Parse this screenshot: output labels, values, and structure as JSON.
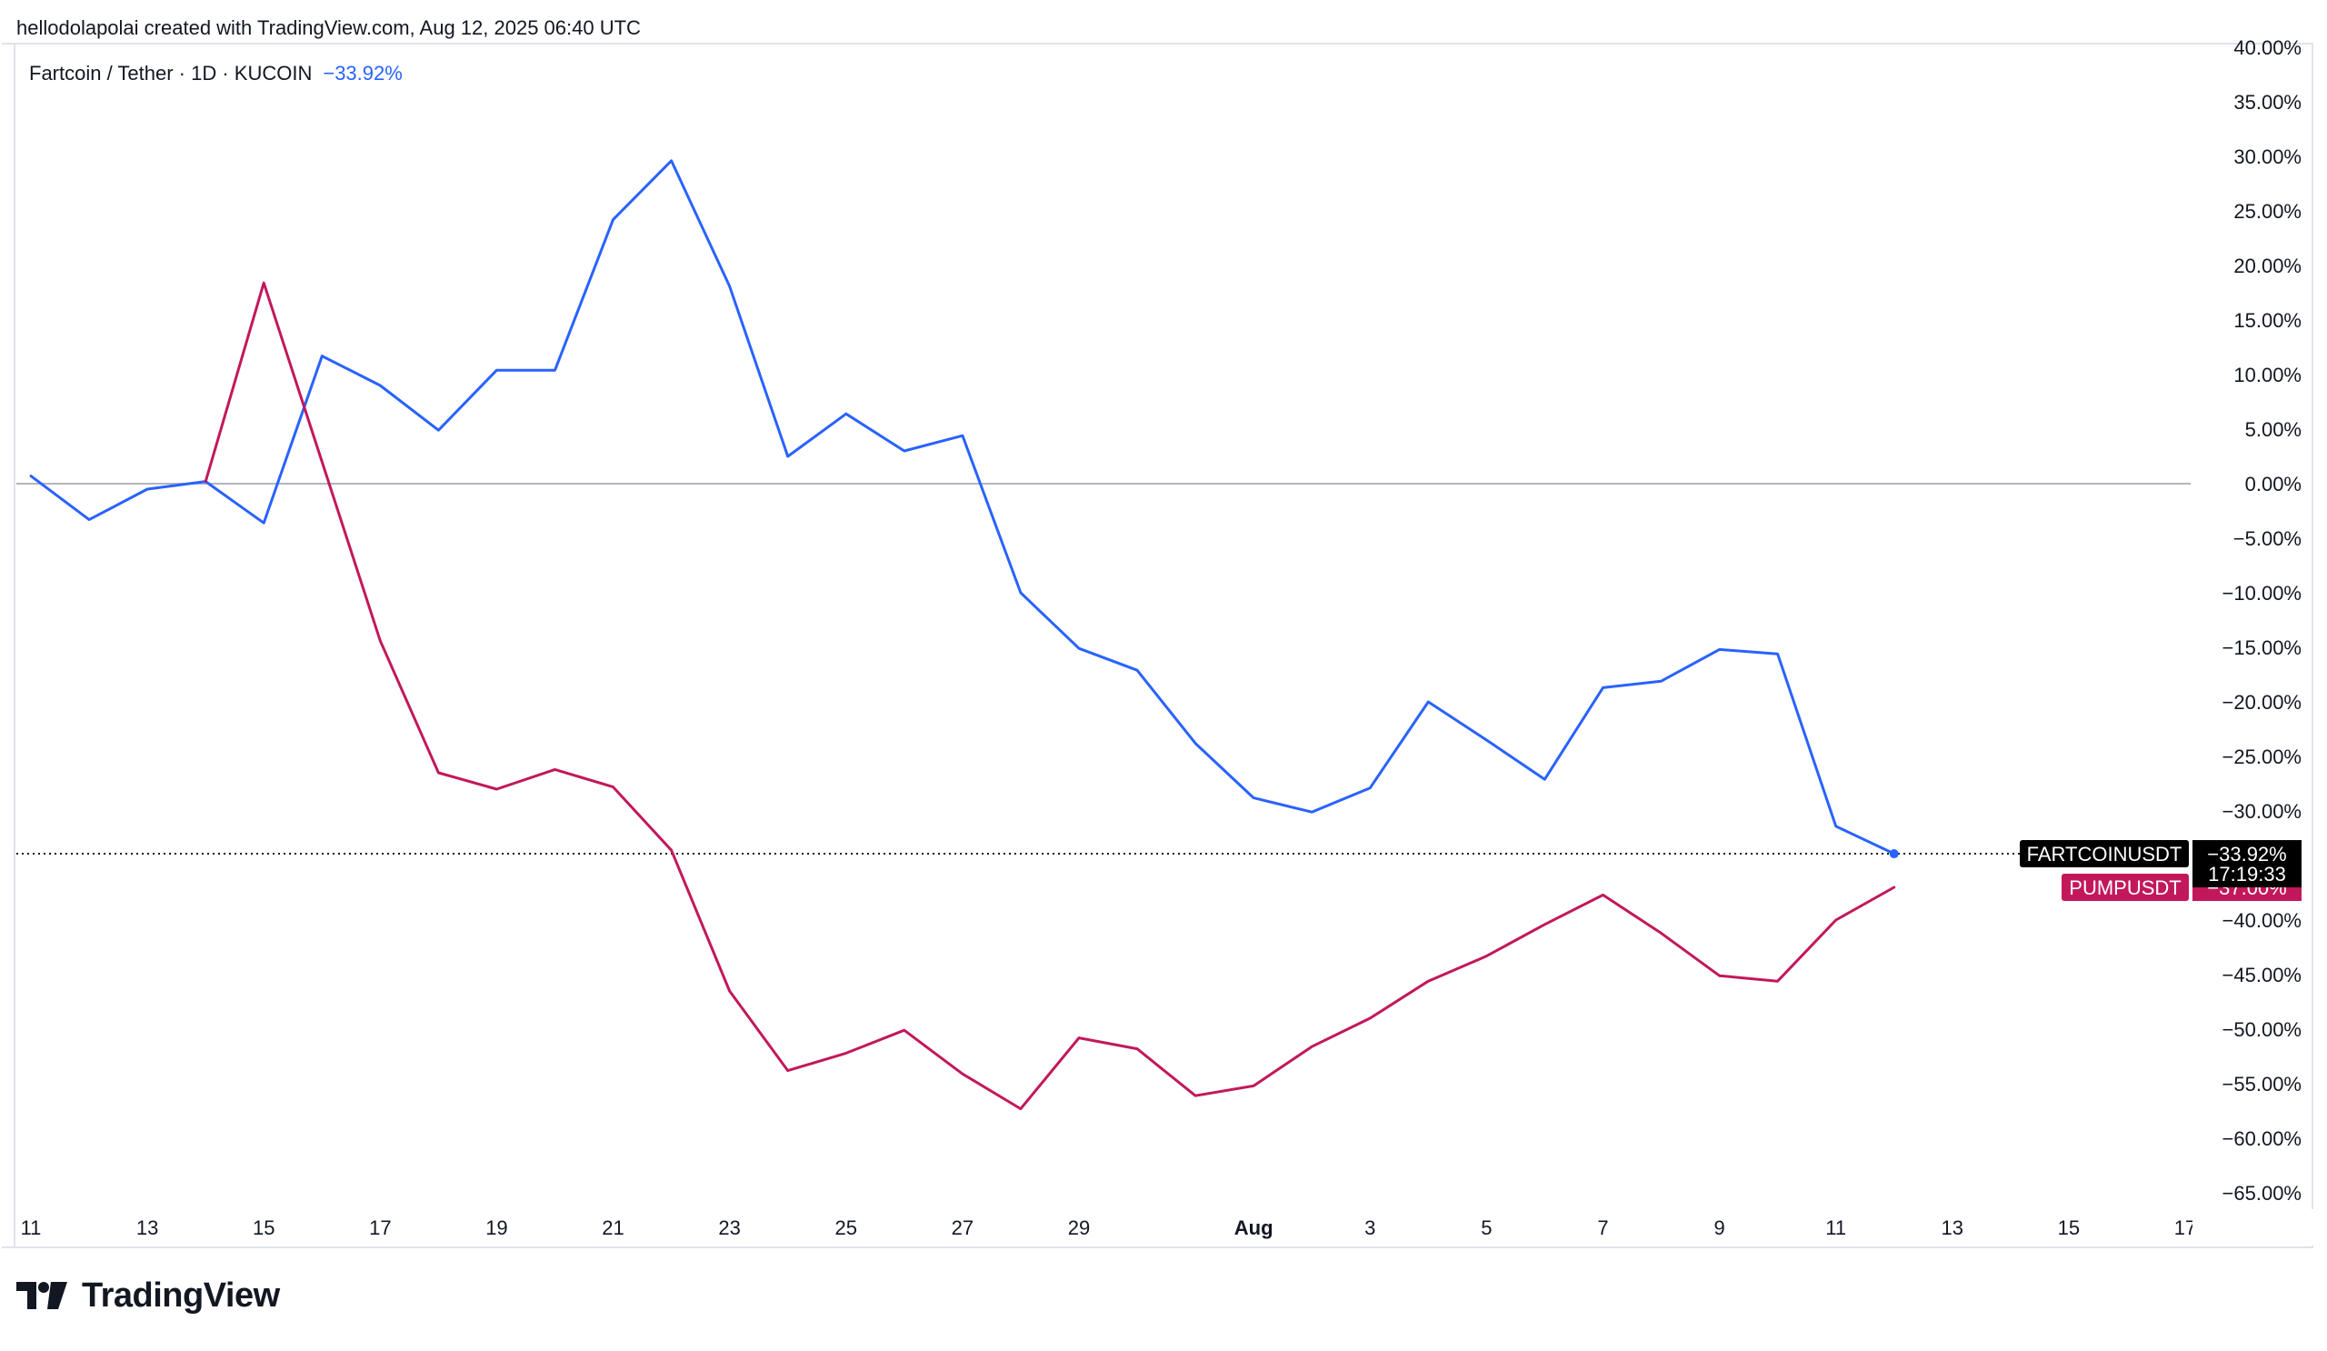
{
  "credit": "hellodolapolai created with TradingView.com, Aug 12, 2025 06:40 UTC",
  "legend": {
    "symbol": "Fartcoin / Tether · 1D · KUCOIN",
    "change": "−33.92%"
  },
  "brand": {
    "name": "TradingView",
    "logo_icon": "tradingview-logo-icon"
  },
  "colors": {
    "fartcoin": "#2962ff",
    "pump": "#c2185b",
    "zero_line": "#b2b5be",
    "price_line": "#131722",
    "tag_dark": "#000000"
  },
  "chart_data": {
    "type": "line",
    "title": "Fartcoin / Tether · 1D · KUCOIN",
    "xlabel": "",
    "ylabel": "",
    "y_unit": "%",
    "ylim": [
      -65,
      40
    ],
    "y_ticks": [
      "40.00%",
      "35.00%",
      "30.00%",
      "25.00%",
      "20.00%",
      "15.00%",
      "10.00%",
      "5.00%",
      "0.00%",
      "−5.00%",
      "−10.00%",
      "−15.00%",
      "−20.00%",
      "−25.00%",
      "−30.00%",
      "−35.00%",
      "−40.00%",
      "−45.00%",
      "−50.00%",
      "−55.00%",
      "−60.00%",
      "−65.00%"
    ],
    "x_ticks": [
      {
        "date": "2025-07-11",
        "label": "11"
      },
      {
        "date": "2025-07-13",
        "label": "13"
      },
      {
        "date": "2025-07-15",
        "label": "15"
      },
      {
        "date": "2025-07-17",
        "label": "17"
      },
      {
        "date": "2025-07-19",
        "label": "19"
      },
      {
        "date": "2025-07-21",
        "label": "21"
      },
      {
        "date": "2025-07-23",
        "label": "23"
      },
      {
        "date": "2025-07-25",
        "label": "25"
      },
      {
        "date": "2025-07-27",
        "label": "27"
      },
      {
        "date": "2025-07-29",
        "label": "29"
      },
      {
        "date": "2025-08-01",
        "label": "Aug",
        "bold": true
      },
      {
        "date": "2025-08-03",
        "label": "3"
      },
      {
        "date": "2025-08-05",
        "label": "5"
      },
      {
        "date": "2025-08-07",
        "label": "7"
      },
      {
        "date": "2025-08-09",
        "label": "9"
      },
      {
        "date": "2025-08-11",
        "label": "11"
      },
      {
        "date": "2025-08-13",
        "label": "13"
      },
      {
        "date": "2025-08-15",
        "label": "15"
      },
      {
        "date": "2025-08-17",
        "label": "17"
      }
    ],
    "x_range": [
      "2025-07-11",
      "2025-08-17"
    ],
    "series": [
      {
        "name": "FARTCOINUSDT",
        "color": "#2962ff",
        "last_value_label": "−33.92%",
        "countdown": "17:19:33",
        "points": [
          [
            "2025-07-11",
            0.7
          ],
          [
            "2025-07-12",
            -3.3
          ],
          [
            "2025-07-13",
            -0.5
          ],
          [
            "2025-07-14",
            0.2
          ],
          [
            "2025-07-15",
            -3.6
          ],
          [
            "2025-07-16",
            11.7
          ],
          [
            "2025-07-17",
            9.0
          ],
          [
            "2025-07-18",
            4.9
          ],
          [
            "2025-07-19",
            10.4
          ],
          [
            "2025-07-20",
            10.4
          ],
          [
            "2025-07-21",
            24.2
          ],
          [
            "2025-07-22",
            29.6
          ],
          [
            "2025-07-23",
            18.1
          ],
          [
            "2025-07-24",
            2.5
          ],
          [
            "2025-07-25",
            6.4
          ],
          [
            "2025-07-26",
            3.0
          ],
          [
            "2025-07-27",
            4.4
          ],
          [
            "2025-07-28",
            -10.0
          ],
          [
            "2025-07-29",
            -15.1
          ],
          [
            "2025-07-30",
            -17.1
          ],
          [
            "2025-07-31",
            -23.8
          ],
          [
            "2025-08-01",
            -28.8
          ],
          [
            "2025-08-02",
            -30.1
          ],
          [
            "2025-08-03",
            -27.9
          ],
          [
            "2025-08-04",
            -20.0
          ],
          [
            "2025-08-05",
            -23.5
          ],
          [
            "2025-08-06",
            -27.1
          ],
          [
            "2025-08-07",
            -18.7
          ],
          [
            "2025-08-08",
            -18.1
          ],
          [
            "2025-08-09",
            -15.2
          ],
          [
            "2025-08-10",
            -15.6
          ],
          [
            "2025-08-11",
            -31.4
          ],
          [
            "2025-08-12",
            -33.92
          ]
        ]
      },
      {
        "name": "PUMPUSDT",
        "color": "#c2185b",
        "last_value_label": "−37.00%",
        "points": [
          [
            "2025-07-14",
            0.2
          ],
          [
            "2025-07-15",
            18.4
          ],
          [
            "2025-07-16",
            2.0
          ],
          [
            "2025-07-17",
            -14.4
          ],
          [
            "2025-07-18",
            -26.5
          ],
          [
            "2025-07-19",
            -28.0
          ],
          [
            "2025-07-20",
            -26.2
          ],
          [
            "2025-07-21",
            -27.8
          ],
          [
            "2025-07-22",
            -33.6
          ],
          [
            "2025-07-23",
            -46.5
          ],
          [
            "2025-07-24",
            -53.8
          ],
          [
            "2025-07-25",
            -52.2
          ],
          [
            "2025-07-26",
            -50.1
          ],
          [
            "2025-07-27",
            -54.1
          ],
          [
            "2025-07-28",
            -57.3
          ],
          [
            "2025-07-29",
            -50.8
          ],
          [
            "2025-07-30",
            -51.8
          ],
          [
            "2025-07-31",
            -56.1
          ],
          [
            "2025-08-01",
            -55.2
          ],
          [
            "2025-08-02",
            -51.6
          ],
          [
            "2025-08-03",
            -49.0
          ],
          [
            "2025-08-04",
            -45.6
          ],
          [
            "2025-08-05",
            -43.3
          ],
          [
            "2025-08-06",
            -40.4
          ],
          [
            "2025-08-07",
            -37.7
          ],
          [
            "2025-08-08",
            -41.2
          ],
          [
            "2025-08-09",
            -45.1
          ],
          [
            "2025-08-10",
            -45.6
          ],
          [
            "2025-08-11",
            -40.0
          ],
          [
            "2025-08-12",
            -37.0
          ]
        ]
      }
    ],
    "grid": false,
    "legend_position": "top-left"
  }
}
